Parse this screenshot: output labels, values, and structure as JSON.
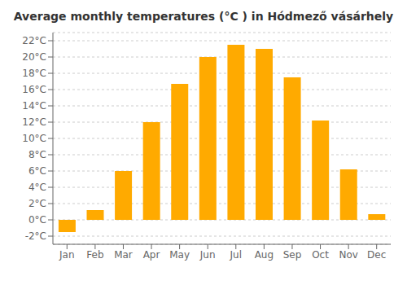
{
  "chart_data": {
    "type": "bar",
    "title": "Average monthly temperatures (°C ) in Hódmező vásárhely",
    "categories": [
      "Jan",
      "Feb",
      "Mar",
      "Apr",
      "May",
      "Jun",
      "Jul",
      "Aug",
      "Sep",
      "Oct",
      "Nov",
      "Dec"
    ],
    "values": [
      -1.5,
      1.2,
      6.0,
      12.0,
      16.7,
      20.0,
      21.5,
      21.0,
      17.5,
      12.2,
      6.2,
      0.7
    ],
    "color": "#FFAA00",
    "ylim": [
      -3,
      23
    ],
    "yticks": [
      {
        "value": -2,
        "label": "-2°C"
      },
      {
        "value": 0,
        "label": "0°C"
      },
      {
        "value": 2,
        "label": "2°C"
      },
      {
        "value": 4,
        "label": "4°C"
      },
      {
        "value": 6,
        "label": "6°C"
      },
      {
        "value": 8,
        "label": "8°C"
      },
      {
        "value": 10,
        "label": "10°C"
      },
      {
        "value": 12,
        "label": "12°C"
      },
      {
        "value": 14,
        "label": "14°C"
      },
      {
        "value": 16,
        "label": "16°C"
      },
      {
        "value": 18,
        "label": "18°C"
      },
      {
        "value": 20,
        "label": "20°C"
      },
      {
        "value": 22,
        "label": "22°C"
      }
    ],
    "grid": true
  }
}
